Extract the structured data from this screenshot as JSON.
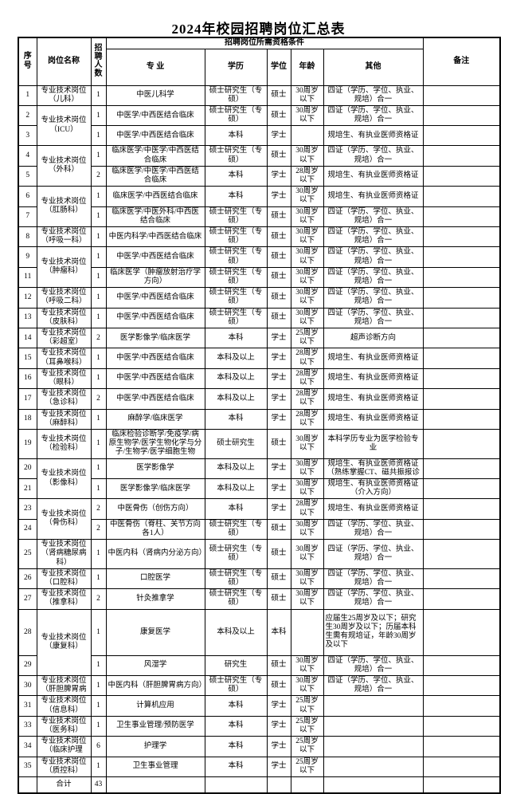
{
  "title": "2024年校园招聘岗位汇总表",
  "table": {
    "headers": {
      "no": "序号",
      "position": "岗位名称",
      "count": "招聘人数",
      "qual_group": "招聘岗位所需资格条件",
      "major": "专 业",
      "education": "学历",
      "degree": "学位",
      "age": "年龄",
      "other": "其他",
      "remark": "备注"
    },
    "rows": [
      {
        "no": "1",
        "position": "专业技术岗位（儿科）",
        "span": 1,
        "count": "1",
        "major": "中医儿科学",
        "edu": "硕士研究生（专硕）",
        "deg": "硕士",
        "age": "30周岁以下",
        "other": "四证（学历、学位、执业、规培）合一",
        "remark": ""
      },
      {
        "no": "2",
        "position": "专业技术岗位（ICU）",
        "span": 2,
        "count": "1",
        "major": "中医学/中西医结合临床",
        "edu": "硕士研究生（专硕）",
        "deg": "硕士",
        "age": "30周岁以下",
        "other": "四证（学历、学位、执业、规培）合一",
        "remark": ""
      },
      {
        "no": "3",
        "position": null,
        "span": 1,
        "count": "1",
        "major": "中医学/中西医结合临床",
        "edu": "本科",
        "deg": "学士",
        "age": "",
        "other": "规培生、有执业医师资格证",
        "remark": ""
      },
      {
        "no": "4",
        "position": "专业技术岗位（外科）",
        "span": 2,
        "count": "1",
        "major": "临床医学/中医学/中西医结合临床",
        "edu": "硕士研究生（专硕）",
        "deg": "硕士",
        "age": "30周岁以下",
        "other": "四证（学历、学位、执业、规培）合一",
        "remark": ""
      },
      {
        "no": "5",
        "position": null,
        "span": 1,
        "count": "2",
        "major": "临床医学/中医学/中西医结合临床",
        "edu": "本科",
        "deg": "学士",
        "age": "28周岁以下",
        "other": "规培生、有执业医师资格证",
        "remark": ""
      },
      {
        "no": "6",
        "position": "专业技术岗位（肛肠科）",
        "span": 2,
        "count": "1",
        "major": "临床医学/中西医结合临床",
        "edu": "本科",
        "deg": "学士",
        "age": "30周岁以下",
        "other": "规培生、有执业医师资格证",
        "remark": ""
      },
      {
        "no": "7",
        "position": null,
        "span": 1,
        "count": "1",
        "major": "临床医学/中医外科/中西医结合临床",
        "edu": "硕士研究生（专硕）",
        "deg": "硕士",
        "age": "30周岁以下",
        "other": "四证（学历、学位、执业、规培）合一",
        "remark": ""
      },
      {
        "no": "8",
        "position": "专业技术岗位（呼吸一科）",
        "span": 1,
        "count": "1",
        "major": "中医内科学/中西医结合临床",
        "edu": "硕士研究生（专硕）",
        "deg": "硕士",
        "age": "30周岁以下",
        "other": "四证（学历、学位、执业、规培）合一",
        "remark": ""
      },
      {
        "no": "9",
        "position": "专业技术岗位（肿瘤科）",
        "span": 2,
        "count": "1",
        "major": "中医学/中西医结合临床",
        "edu": "硕士研究生（专硕）",
        "deg": "硕士",
        "age": "30周岁以下",
        "other": "四证（学历、学位、执业、规培）合一",
        "remark": ""
      },
      {
        "no": "11",
        "position": null,
        "span": 1,
        "count": "1",
        "major": "临床医学（肿瘤放射治疗学方向）",
        "edu": "硕士研究生（专硕）",
        "deg": "硕士",
        "age": "30周岁以下",
        "other": "四证（学历、学位、执业、规培）合一",
        "remark": ""
      },
      {
        "no": "12",
        "position": "专业技术岗位（呼吸二科）",
        "span": 1,
        "count": "1",
        "major": "中医学/中西医结合临床",
        "edu": "硕士研究生（专硕）",
        "deg": "硕士",
        "age": "30周岁以下",
        "other": "四证（学历、学位、执业、规培）合一",
        "remark": ""
      },
      {
        "no": "13",
        "position": "专业技术岗位（皮肤科）",
        "span": 1,
        "count": "1",
        "major": "中医学/中西医结合临床",
        "edu": "硕士研究生（专硕）",
        "deg": "硕士",
        "age": "30周岁以下",
        "other": "四证（学历、学位、执业、规培）合一",
        "remark": ""
      },
      {
        "no": "14",
        "position": "专业技术岗位（彩超室）",
        "span": 1,
        "count": "2",
        "major": "医学影像学/临床医学",
        "edu": "本科",
        "deg": "学士",
        "age": "25周岁以下",
        "other": "超声诊断方向",
        "remark": ""
      },
      {
        "no": "15",
        "position": "专业技术岗位（耳鼻喉科）",
        "span": 1,
        "count": "1",
        "major": "中医学/中西医结合临床",
        "edu": "本科及以上",
        "deg": "学士",
        "age": "28周岁以下",
        "other": "规培生、有执业医师资格证",
        "remark": ""
      },
      {
        "no": "16",
        "position": "专业技术岗位（眼科）",
        "span": 1,
        "count": "1",
        "major": "中医学/中西医结合临床",
        "edu": "本科及以上",
        "deg": "学士",
        "age": "28周岁以下",
        "other": "规培生、有执业医师资格证",
        "remark": ""
      },
      {
        "no": "17",
        "position": "专业技术岗位（急诊科）",
        "span": 1,
        "count": "2",
        "major": "中医学/中西医结合临床",
        "edu": "本科及以上",
        "deg": "学士",
        "age": "28周岁以下",
        "other": "规培生、有执业医师资格证",
        "remark": ""
      },
      {
        "no": "18",
        "position": "专业技术岗位（麻醉科）",
        "span": 1,
        "count": "1",
        "major": "麻醉学/临床医学",
        "edu": "本科",
        "deg": "学士",
        "age": "28周岁以下",
        "other": "规培生、有执业医师资格证",
        "remark": ""
      },
      {
        "no": "19",
        "position": "专业技术岗位（检验科）",
        "span": 1,
        "count": "1",
        "major": "临床检验诊断学/免疫学/病原生物学/医学生物化学与分子/生物学/医学细胞生物",
        "edu": "硕士研究生",
        "deg": "硕士",
        "age": "30周岁以下",
        "other": "本科学历专业为医学检验专业",
        "remark": ""
      },
      {
        "no": "20",
        "position": "专业技术岗位（影像科）",
        "span": 2,
        "count": "1",
        "major": "医学影像学",
        "edu": "本科及以上",
        "deg": "学士",
        "age": "30周岁以下",
        "other": "规培生、有执业医师资格证（熟练掌握CT、磁共振报诊",
        "remark": ""
      },
      {
        "no": "21",
        "position": null,
        "span": 1,
        "count": "1",
        "major": "医学影像学/临床医学",
        "edu": "本科及以上",
        "deg": "学士",
        "age": "30周岁以下",
        "other": "规培生、有执业医师资格证（介入方向）",
        "remark": ""
      },
      {
        "no": "23",
        "position": "专业技术岗位（骨伤科）",
        "span": 2,
        "count": "2",
        "major": "中医骨伤（创伤方向）",
        "edu": "本科",
        "deg": "学士",
        "age": "28周岁以下",
        "other": "规培生、有执业医师资格证",
        "remark": ""
      },
      {
        "no": "24",
        "position": null,
        "span": 1,
        "count": "2",
        "major": "中医骨伤（脊柱、关节方向各1人）",
        "edu": "硕士研究生（专硕）",
        "deg": "硕士",
        "age": "30周岁以下",
        "other": "四证（学历、学位、执业、规培）合一",
        "remark": ""
      },
      {
        "no": "25",
        "position": "专业技术岗位（肾病糖尿病科）",
        "span": 1,
        "count": "1",
        "major": "中医内科（肾病内分泌方向）",
        "edu": "硕士研究生（专硕）",
        "deg": "硕士",
        "age": "30周岁以下",
        "other": "四证（学历、学位、执业、规培）合一",
        "remark": ""
      },
      {
        "no": "26",
        "position": "专业技术岗位（口腔科）",
        "span": 1,
        "count": "1",
        "major": "口腔医学",
        "edu": "硕士研究生（专硕）",
        "deg": "硕士",
        "age": "30周岁以下",
        "other": "四证（学历、学位、执业、规培）合一",
        "remark": ""
      },
      {
        "no": "27",
        "position": "专业技术岗位（推拿科）",
        "span": 1,
        "count": "2",
        "major": "针灸推拿学",
        "edu": "硕士研究生（专硕）",
        "deg": "硕士",
        "age": "30周岁以下",
        "other": "四证（学历、学位、执业、规培）合一",
        "remark": ""
      },
      {
        "no": "28",
        "position": "专业技术岗位（康复科）",
        "span": 2,
        "count": "1",
        "major": "康复医学",
        "edu": "本科及以上",
        "deg": "本科",
        "age": "",
        "other": "应届生25周岁及以下；研究生30周岁及以下；历届本科生需有规培证，年龄30周岁及以下",
        "remark": ""
      },
      {
        "no": "29",
        "position": null,
        "span": 1,
        "count": "1",
        "major": "风湿学",
        "edu": "研究生",
        "deg": "硕士",
        "age": "30周岁以下",
        "other": "四证（学历、学位、执业、规培）合一",
        "remark": ""
      },
      {
        "no": "30",
        "position": "专业技术岗位（肝胆脾胃病",
        "span": 1,
        "count": "1",
        "major": "中医内科（肝胆脾胃病方向）",
        "edu": "硕士研究生（专硕）",
        "deg": "硕士",
        "age": "30周岁以下",
        "other": "四证（学历、学位、执业、规培）合一",
        "remark": ""
      },
      {
        "no": "31",
        "position": "专业技术岗位（信息科）",
        "span": 1,
        "count": "1",
        "major": "计算机应用",
        "edu": "本科",
        "deg": "学士",
        "age": "25周岁以下",
        "other": "",
        "remark": ""
      },
      {
        "no": "33",
        "position": "专业技术岗位（医务科）",
        "span": 1,
        "count": "1",
        "major": "卫生事业管理/预防医学",
        "edu": "本科",
        "deg": "学士",
        "age": "25周岁以下",
        "other": "",
        "remark": ""
      },
      {
        "no": "34",
        "position": "专业技术岗位（临床护理",
        "span": 1,
        "count": "6",
        "major": "护理学",
        "edu": "本科",
        "deg": "学士",
        "age": "25周岁以下",
        "other": "",
        "remark": ""
      },
      {
        "no": "35",
        "position": "专业技术岗位（质控科）",
        "span": 1,
        "count": "1",
        "major": "卫生事业管理",
        "edu": "本科",
        "deg": "学士",
        "age": "25周岁以下",
        "other": "",
        "remark": ""
      }
    ],
    "total": {
      "label": "合计",
      "count": "43"
    }
  }
}
